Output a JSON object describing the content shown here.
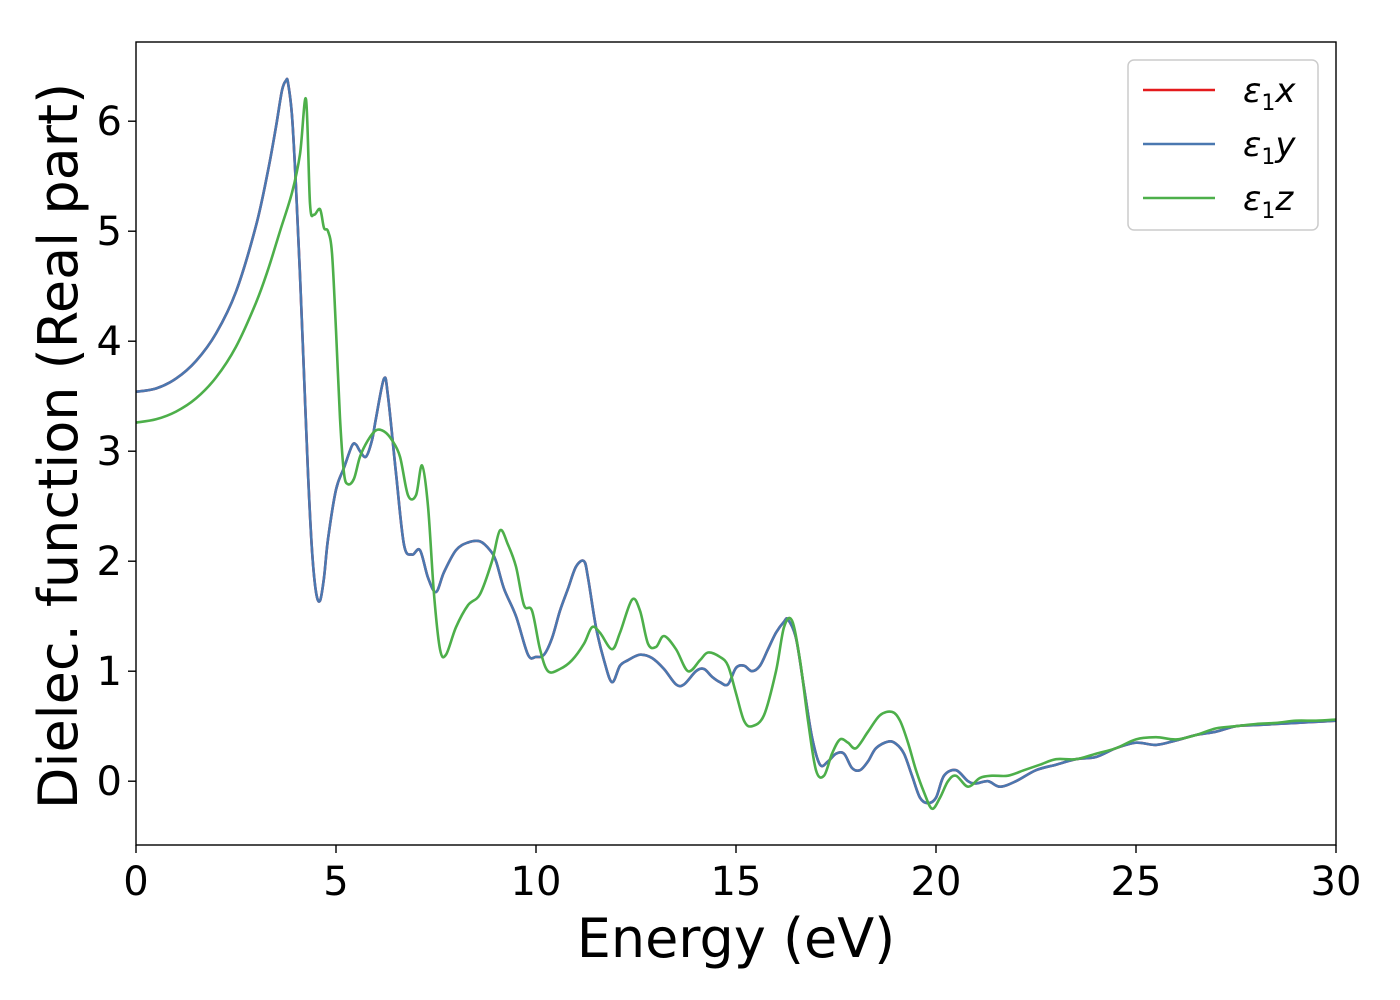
{
  "chart_data": {
    "type": "line",
    "title": "",
    "xlabel": "Energy (eV)",
    "ylabel": "Dielec. function (Real part)",
    "xlim": [
      0,
      30
    ],
    "ylim": [
      -0.58,
      6.72
    ],
    "xticks": [
      0,
      5,
      10,
      15,
      20,
      25,
      30
    ],
    "yticks": [
      0,
      1,
      2,
      3,
      4,
      5,
      6
    ],
    "grid": false,
    "legend_position": "top-right",
    "series": [
      {
        "name": "ε1x",
        "legend": {
          "main": "ε",
          "sub": "1",
          "suffix": "x"
        },
        "color": "#e41a1c",
        "x": [
          0,
          0.5,
          1,
          1.5,
          2,
          2.5,
          3,
          3.3,
          3.5,
          3.65,
          3.75,
          3.8,
          3.9,
          4.0,
          4.1,
          4.2,
          4.3,
          4.4,
          4.5,
          4.6,
          4.7,
          4.8,
          5.0,
          5.2,
          5.4,
          5.5,
          5.6,
          5.75,
          5.9,
          6.0,
          6.2,
          6.3,
          6.5,
          6.7,
          6.9,
          7.1,
          7.3,
          7.5,
          7.7,
          8.0,
          8.3,
          8.6,
          8.85,
          9.0,
          9.2,
          9.5,
          9.8,
          10.0,
          10.2,
          10.4,
          10.6,
          10.8,
          11.0,
          11.2,
          11.3,
          11.5,
          11.7,
          11.9,
          12.1,
          12.3,
          12.6,
          12.9,
          13.2,
          13.5,
          13.7,
          14.0,
          14.2,
          14.4,
          14.6,
          14.8,
          15.0,
          15.2,
          15.4,
          15.6,
          15.8,
          16.0,
          16.2,
          16.3,
          16.5,
          16.7,
          16.9,
          17.1,
          17.3,
          17.5,
          17.7,
          17.9,
          18.1,
          18.3,
          18.5,
          18.8,
          19.0,
          19.2,
          19.4,
          19.6,
          19.8,
          20.0,
          20.2,
          20.5,
          20.8,
          21.0,
          21.3,
          21.6,
          22.0,
          22.5,
          23.0,
          23.5,
          24.0,
          24.5,
          25.0,
          25.5,
          26.0,
          26.5,
          27.0,
          27.5,
          28.0,
          28.5,
          29.0,
          29.5,
          30.0
        ],
        "y": [
          3.54,
          3.57,
          3.66,
          3.82,
          4.07,
          4.45,
          5.05,
          5.55,
          5.95,
          6.28,
          6.37,
          6.35,
          6.05,
          5.4,
          4.6,
          3.7,
          2.8,
          2.1,
          1.72,
          1.64,
          1.85,
          2.2,
          2.65,
          2.85,
          3.05,
          3.06,
          3.0,
          2.95,
          3.1,
          3.3,
          3.66,
          3.5,
          2.8,
          2.15,
          2.06,
          2.1,
          1.85,
          1.72,
          1.9,
          2.1,
          2.17,
          2.18,
          2.1,
          2.0,
          1.75,
          1.5,
          1.15,
          1.13,
          1.15,
          1.3,
          1.55,
          1.75,
          1.95,
          2.0,
          1.85,
          1.4,
          1.1,
          0.9,
          1.05,
          1.1,
          1.15,
          1.12,
          1.02,
          0.88,
          0.88,
          1.0,
          1.02,
          0.95,
          0.9,
          0.88,
          1.03,
          1.05,
          1.0,
          1.05,
          1.2,
          1.35,
          1.45,
          1.47,
          1.3,
          0.85,
          0.4,
          0.15,
          0.18,
          0.25,
          0.25,
          0.12,
          0.1,
          0.18,
          0.3,
          0.36,
          0.34,
          0.25,
          0.05,
          -0.15,
          -0.2,
          -0.15,
          0.05,
          0.1,
          0.0,
          -0.02,
          0.0,
          -0.05,
          0.0,
          0.1,
          0.15,
          0.2,
          0.22,
          0.3,
          0.35,
          0.33,
          0.37,
          0.42,
          0.45,
          0.5,
          0.51,
          0.52,
          0.53,
          0.54,
          0.55
        ]
      },
      {
        "name": "ε1y",
        "legend": {
          "main": "ε",
          "sub": "1",
          "suffix": "y"
        },
        "color": "#4a78b0",
        "x": [
          0,
          0.5,
          1,
          1.5,
          2,
          2.5,
          3,
          3.3,
          3.5,
          3.65,
          3.75,
          3.8,
          3.9,
          4.0,
          4.1,
          4.2,
          4.3,
          4.4,
          4.5,
          4.6,
          4.7,
          4.8,
          5.0,
          5.2,
          5.4,
          5.5,
          5.6,
          5.75,
          5.9,
          6.0,
          6.2,
          6.3,
          6.5,
          6.7,
          6.9,
          7.1,
          7.3,
          7.5,
          7.7,
          8.0,
          8.3,
          8.6,
          8.85,
          9.0,
          9.2,
          9.5,
          9.8,
          10.0,
          10.2,
          10.4,
          10.6,
          10.8,
          11.0,
          11.2,
          11.3,
          11.5,
          11.7,
          11.9,
          12.1,
          12.3,
          12.6,
          12.9,
          13.2,
          13.5,
          13.7,
          14.0,
          14.2,
          14.4,
          14.6,
          14.8,
          15.0,
          15.2,
          15.4,
          15.6,
          15.8,
          16.0,
          16.2,
          16.3,
          16.5,
          16.7,
          16.9,
          17.1,
          17.3,
          17.5,
          17.7,
          17.9,
          18.1,
          18.3,
          18.5,
          18.8,
          19.0,
          19.2,
          19.4,
          19.6,
          19.8,
          20.0,
          20.2,
          20.5,
          20.8,
          21.0,
          21.3,
          21.6,
          22.0,
          22.5,
          23.0,
          23.5,
          24.0,
          24.5,
          25.0,
          25.5,
          26.0,
          26.5,
          27.0,
          27.5,
          28.0,
          28.5,
          29.0,
          29.5,
          30.0
        ],
        "y": [
          3.54,
          3.57,
          3.66,
          3.82,
          4.07,
          4.45,
          5.05,
          5.55,
          5.95,
          6.28,
          6.37,
          6.35,
          6.05,
          5.4,
          4.6,
          3.7,
          2.8,
          2.1,
          1.72,
          1.64,
          1.85,
          2.2,
          2.65,
          2.85,
          3.05,
          3.06,
          3.0,
          2.95,
          3.1,
          3.3,
          3.66,
          3.5,
          2.8,
          2.15,
          2.06,
          2.1,
          1.85,
          1.72,
          1.9,
          2.1,
          2.17,
          2.18,
          2.1,
          2.0,
          1.75,
          1.5,
          1.15,
          1.13,
          1.15,
          1.3,
          1.55,
          1.75,
          1.95,
          2.0,
          1.85,
          1.4,
          1.1,
          0.9,
          1.05,
          1.1,
          1.15,
          1.12,
          1.02,
          0.88,
          0.88,
          1.0,
          1.02,
          0.95,
          0.9,
          0.88,
          1.03,
          1.05,
          1.0,
          1.05,
          1.2,
          1.35,
          1.45,
          1.47,
          1.3,
          0.85,
          0.4,
          0.15,
          0.18,
          0.25,
          0.25,
          0.12,
          0.1,
          0.18,
          0.3,
          0.36,
          0.34,
          0.25,
          0.05,
          -0.15,
          -0.2,
          -0.15,
          0.05,
          0.1,
          0.0,
          -0.02,
          0.0,
          -0.05,
          0.0,
          0.1,
          0.15,
          0.2,
          0.22,
          0.3,
          0.35,
          0.33,
          0.37,
          0.42,
          0.45,
          0.5,
          0.51,
          0.52,
          0.53,
          0.54,
          0.55
        ]
      },
      {
        "name": "ε1z",
        "legend": {
          "main": "ε",
          "sub": "1",
          "suffix": "z"
        },
        "color": "#4daf4a",
        "x": [
          0,
          0.5,
          1,
          1.5,
          2,
          2.5,
          3,
          3.3,
          3.6,
          3.9,
          4.1,
          4.25,
          4.35,
          4.45,
          4.6,
          4.7,
          4.8,
          4.9,
          5.0,
          5.1,
          5.2,
          5.3,
          5.45,
          5.6,
          5.8,
          6.0,
          6.2,
          6.4,
          6.6,
          6.8,
          7.0,
          7.15,
          7.3,
          7.45,
          7.6,
          7.75,
          8.0,
          8.3,
          8.6,
          8.9,
          9.1,
          9.3,
          9.5,
          9.7,
          9.9,
          10.1,
          10.3,
          10.6,
          10.9,
          11.2,
          11.4,
          11.6,
          11.9,
          12.1,
          12.4,
          12.6,
          12.8,
          13.0,
          13.2,
          13.5,
          13.8,
          14.1,
          14.3,
          14.6,
          14.8,
          15.0,
          15.2,
          15.4,
          15.7,
          16.0,
          16.2,
          16.4,
          16.6,
          16.8,
          17.0,
          17.2,
          17.4,
          17.6,
          17.8,
          18.0,
          18.3,
          18.6,
          18.9,
          19.1,
          19.3,
          19.5,
          19.7,
          19.9,
          20.1,
          20.3,
          20.5,
          20.8,
          21.1,
          21.4,
          21.8,
          22.2,
          22.6,
          23.0,
          23.5,
          24.0,
          24.5,
          25.0,
          25.5,
          26.0,
          26.5,
          27.0,
          27.5,
          28.0,
          28.5,
          29.0,
          29.5,
          30.0
        ],
        "y": [
          3.26,
          3.29,
          3.36,
          3.48,
          3.67,
          3.95,
          4.35,
          4.65,
          5.0,
          5.35,
          5.7,
          6.2,
          5.25,
          5.15,
          5.2,
          5.03,
          5.0,
          4.8,
          4.1,
          3.3,
          2.8,
          2.7,
          2.75,
          2.95,
          3.1,
          3.19,
          3.18,
          3.1,
          2.95,
          2.6,
          2.6,
          2.87,
          2.5,
          1.7,
          1.2,
          1.15,
          1.4,
          1.6,
          1.7,
          2.0,
          2.28,
          2.15,
          1.95,
          1.6,
          1.55,
          1.2,
          1.0,
          1.02,
          1.1,
          1.25,
          1.4,
          1.35,
          1.2,
          1.35,
          1.65,
          1.55,
          1.25,
          1.22,
          1.32,
          1.2,
          1.0,
          1.1,
          1.17,
          1.13,
          1.05,
          0.8,
          0.55,
          0.5,
          0.6,
          1.0,
          1.4,
          1.46,
          1.1,
          0.55,
          0.1,
          0.05,
          0.25,
          0.38,
          0.35,
          0.3,
          0.45,
          0.6,
          0.63,
          0.55,
          0.35,
          0.1,
          -0.1,
          -0.25,
          -0.15,
          0.0,
          0.05,
          -0.05,
          0.03,
          0.05,
          0.05,
          0.1,
          0.15,
          0.2,
          0.2,
          0.25,
          0.3,
          0.38,
          0.4,
          0.38,
          0.42,
          0.48,
          0.5,
          0.52,
          0.53,
          0.55,
          0.55,
          0.56
        ]
      }
    ]
  }
}
